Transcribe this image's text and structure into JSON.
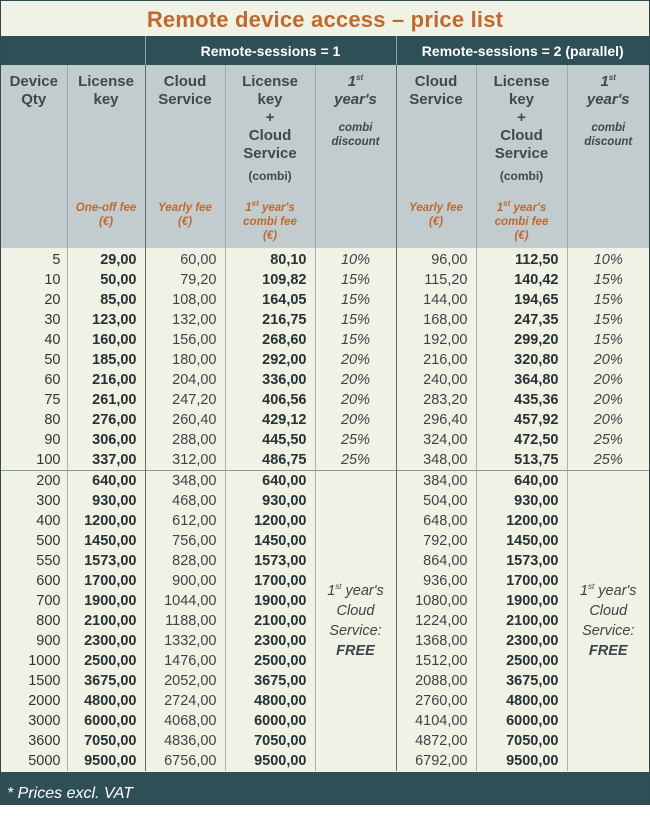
{
  "title": "Remote device access – price list",
  "sessions": [
    "Remote-sessions = 1",
    "Remote-sessions = 2 (parallel)"
  ],
  "headers": {
    "qty": [
      "Device",
      "Qty"
    ],
    "license": [
      "License",
      "key"
    ],
    "license_fee": [
      "One-off fee",
      "(€)"
    ],
    "cloud": [
      "Cloud",
      "Service"
    ],
    "cloud_fee": [
      "Yearly fee",
      "(€)"
    ],
    "combi": [
      "License",
      "key",
      "+",
      "Cloud",
      "Service"
    ],
    "combi_small": "(combi)",
    "combi_fee": [
      "1",
      "st",
      " year's",
      "combi fee",
      "(€)"
    ],
    "disc": [
      "1",
      "st",
      "year's"
    ],
    "disc_small": [
      "combi",
      "discount"
    ]
  },
  "rows": [
    [
      "5",
      "29,00",
      "60,00",
      "80,10",
      "10%",
      "96,00",
      "112,50",
      "10%"
    ],
    [
      "10",
      "50,00",
      "79,20",
      "109,82",
      "15%",
      "115,20",
      "140,42",
      "15%"
    ],
    [
      "20",
      "85,00",
      "108,00",
      "164,05",
      "15%",
      "144,00",
      "194,65",
      "15%"
    ],
    [
      "30",
      "123,00",
      "132,00",
      "216,75",
      "15%",
      "168,00",
      "247,35",
      "15%"
    ],
    [
      "40",
      "160,00",
      "156,00",
      "268,60",
      "15%",
      "192,00",
      "299,20",
      "15%"
    ],
    [
      "50",
      "185,00",
      "180,00",
      "292,00",
      "20%",
      "216,00",
      "320,80",
      "20%"
    ],
    [
      "60",
      "216,00",
      "204,00",
      "336,00",
      "20%",
      "240,00",
      "364,80",
      "20%"
    ],
    [
      "75",
      "261,00",
      "247,20",
      "406,56",
      "20%",
      "283,20",
      "435,36",
      "20%"
    ],
    [
      "80",
      "276,00",
      "260,40",
      "429,12",
      "20%",
      "296,40",
      "457,92",
      "20%"
    ],
    [
      "90",
      "306,00",
      "288,00",
      "445,50",
      "25%",
      "324,00",
      "472,50",
      "25%"
    ],
    [
      "100",
      "337,00",
      "312,00",
      "486,75",
      "25%",
      "348,00",
      "513,75",
      "25%"
    ],
    [
      "200",
      "640,00",
      "348,00",
      "640,00",
      "",
      "384,00",
      "640,00",
      ""
    ],
    [
      "300",
      "930,00",
      "468,00",
      "930,00",
      "",
      "504,00",
      "930,00",
      ""
    ],
    [
      "400",
      "1200,00",
      "612,00",
      "1200,00",
      "",
      "648,00",
      "1200,00",
      ""
    ],
    [
      "500",
      "1450,00",
      "756,00",
      "1450,00",
      "",
      "792,00",
      "1450,00",
      ""
    ],
    [
      "550",
      "1573,00",
      "828,00",
      "1573,00",
      "",
      "864,00",
      "1573,00",
      ""
    ],
    [
      "600",
      "1700,00",
      "900,00",
      "1700,00",
      "",
      "936,00",
      "1700,00",
      ""
    ],
    [
      "700",
      "1900,00",
      "1044,00",
      "1900,00",
      "",
      "1080,00",
      "1900,00",
      ""
    ],
    [
      "800",
      "2100,00",
      "1188,00",
      "2100,00",
      "",
      "1224,00",
      "2100,00",
      ""
    ],
    [
      "900",
      "2300,00",
      "1332,00",
      "2300,00",
      "",
      "1368,00",
      "2300,00",
      ""
    ],
    [
      "1000",
      "2500,00",
      "1476,00",
      "2500,00",
      "",
      "1512,00",
      "2500,00",
      ""
    ],
    [
      "1500",
      "3675,00",
      "2052,00",
      "3675,00",
      "",
      "2088,00",
      "3675,00",
      ""
    ],
    [
      "2000",
      "4800,00",
      "2724,00",
      "4800,00",
      "",
      "2760,00",
      "4800,00",
      ""
    ],
    [
      "3000",
      "6000,00",
      "4068,00",
      "6000,00",
      "",
      "4104,00",
      "6000,00",
      ""
    ],
    [
      "3600",
      "7050,00",
      "4836,00",
      "7050,00",
      "",
      "4872,00",
      "7050,00",
      ""
    ],
    [
      "5000",
      "9500,00",
      "6756,00",
      "9500,00",
      "",
      "6792,00",
      "9500,00",
      ""
    ]
  ],
  "free_note": [
    "1",
    "st",
    " year's",
    "Cloud",
    "Service:",
    "FREE"
  ],
  "footer": "* Prices excl. VAT",
  "colors": {
    "header_bg": "#2f4f56",
    "title": "#c0692f",
    "band": "#c2cbcd",
    "bg": "#f1f2e6"
  }
}
